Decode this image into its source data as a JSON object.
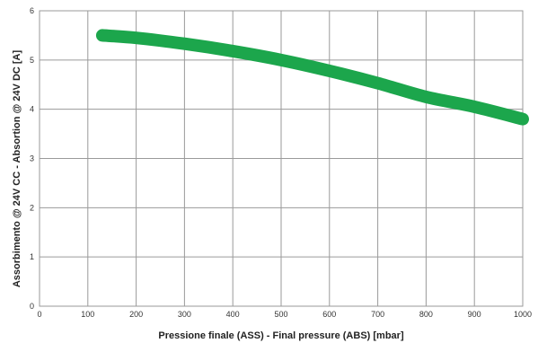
{
  "chart_data": {
    "type": "line",
    "title": "",
    "xlabel": "Pressione finale (ASS) - Final pressure (ABS) [mbar]",
    "ylabel": "Assorbimento @ 24V CC - Absortion @ 24V DC [A]",
    "xlim": [
      0,
      1000
    ],
    "ylim": [
      0,
      6
    ],
    "xticks": [
      0,
      100,
      200,
      300,
      400,
      500,
      600,
      700,
      800,
      900,
      1000
    ],
    "yticks": [
      0,
      1,
      2,
      3,
      4,
      5,
      6
    ],
    "grid": true,
    "legend": "none",
    "series": [
      {
        "color": "#1ca64c",
        "x": [
          130,
          200,
          300,
          400,
          500,
          600,
          700,
          800,
          900,
          1000
        ],
        "y": [
          5.5,
          5.45,
          5.33,
          5.18,
          5.0,
          4.78,
          4.53,
          4.25,
          4.05,
          3.8
        ]
      }
    ]
  }
}
